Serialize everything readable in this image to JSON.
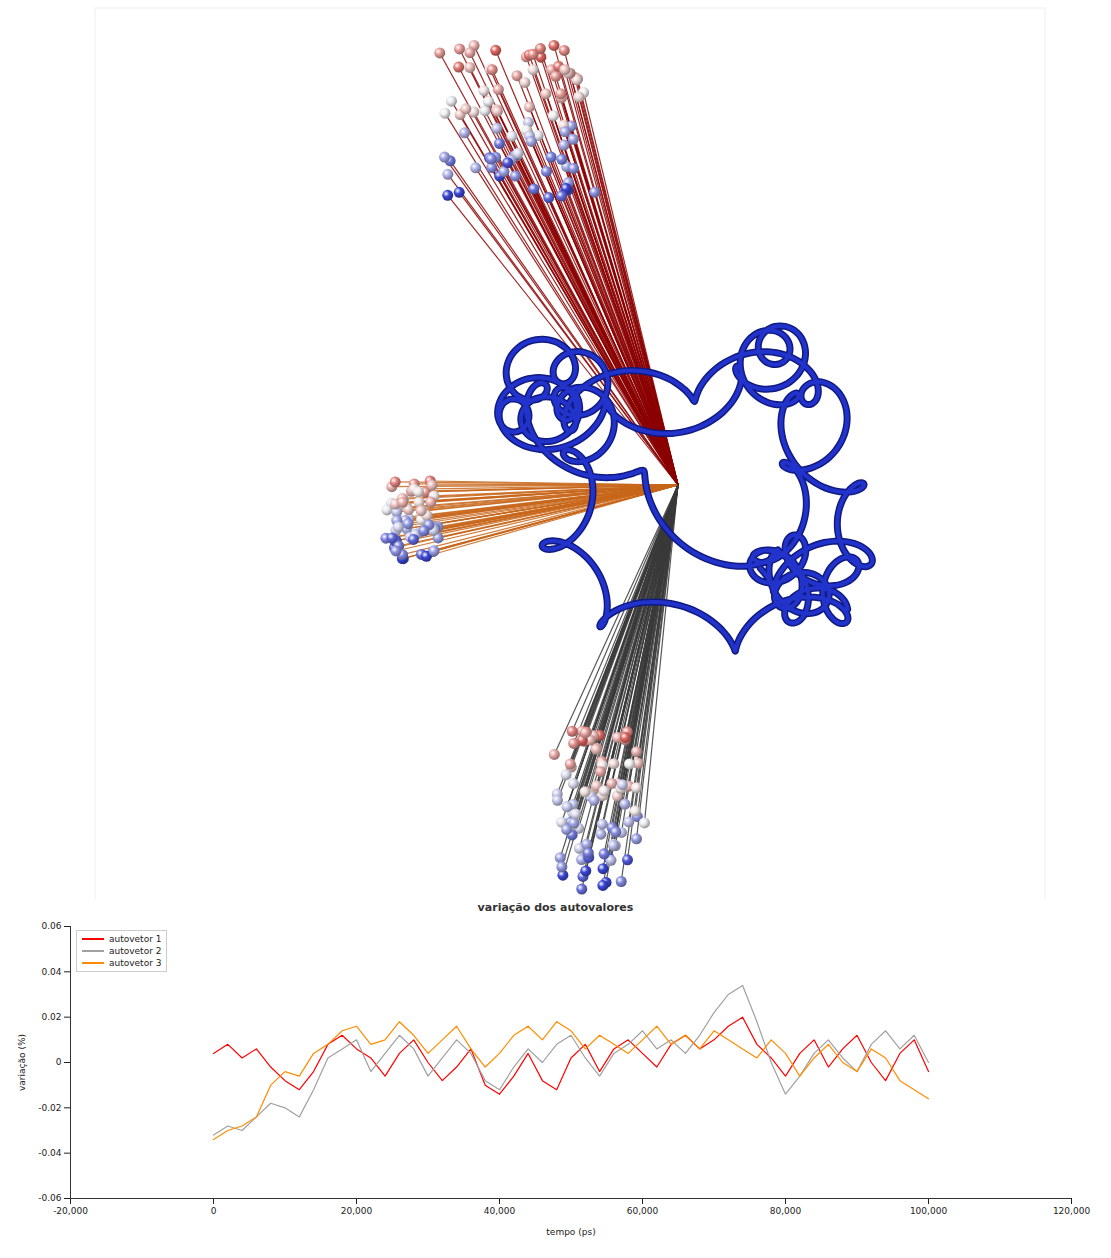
{
  "chart_data": {
    "type": "line",
    "title": "variação dos autovalores",
    "xlabel": "tempo (ps)",
    "ylabel": "variação (%)",
    "xlim": [
      -20000,
      120000
    ],
    "xticks": [
      {
        "value": -20000,
        "label": "-20,000"
      },
      0,
      {
        "value": 20000,
        "label": "20,000"
      },
      {
        "value": 40000,
        "label": "40,000"
      },
      {
        "value": 60000,
        "label": "60,000"
      },
      {
        "value": 80000,
        "label": "80,000"
      },
      {
        "value": 100000,
        "label": "100,000"
      },
      {
        "value": 120000,
        "label": "120,000"
      }
    ],
    "ylim": [
      -0.06,
      0.06
    ],
    "yticks": [
      -0.06,
      -0.04,
      -0.02,
      0,
      0.02,
      0.04,
      0.06
    ],
    "grid": false,
    "legend": "top-left",
    "x": [
      0,
      2000,
      4000,
      6000,
      8000,
      10000,
      12000,
      14000,
      16000,
      18000,
      20000,
      22000,
      24000,
      26000,
      28000,
      30000,
      32000,
      34000,
      36000,
      38000,
      40000,
      42000,
      44000,
      46000,
      48000,
      50000,
      52000,
      54000,
      56000,
      58000,
      60000,
      62000,
      64000,
      66000,
      68000,
      70000,
      72000,
      74000,
      76000,
      78000,
      80000,
      82000,
      84000,
      86000,
      88000,
      90000,
      92000,
      94000,
      96000,
      98000,
      100000
    ],
    "series": [
      {
        "name": "autovetor 1",
        "color": "#ff0000",
        "values": [
          0.004,
          0.008,
          0.002,
          0.006,
          -0.002,
          -0.008,
          -0.012,
          -0.004,
          0.008,
          0.012,
          0.006,
          0.002,
          -0.006,
          0.004,
          0.01,
          0.0,
          -0.008,
          -0.002,
          0.006,
          -0.01,
          -0.014,
          -0.006,
          0.004,
          -0.008,
          -0.012,
          0.002,
          0.008,
          -0.004,
          0.006,
          0.01,
          0.004,
          -0.002,
          0.008,
          0.012,
          0.006,
          0.01,
          0.016,
          0.02,
          0.008,
          0.002,
          -0.006,
          0.004,
          0.01,
          -0.002,
          0.006,
          0.012,
          0.0,
          -0.008,
          0.004,
          0.01,
          -0.004
        ]
      },
      {
        "name": "autovetor 2",
        "color": "#a0a0a0",
        "values": [
          -0.032,
          -0.028,
          -0.03,
          -0.024,
          -0.018,
          -0.02,
          -0.024,
          -0.012,
          0.002,
          0.006,
          0.01,
          -0.004,
          0.004,
          0.012,
          0.006,
          -0.006,
          0.002,
          0.01,
          0.004,
          -0.008,
          -0.012,
          -0.002,
          0.006,
          0.0,
          0.008,
          0.012,
          0.002,
          -0.006,
          0.004,
          0.008,
          0.014,
          0.006,
          0.01,
          0.004,
          0.012,
          0.022,
          0.03,
          0.034,
          0.018,
          0.0,
          -0.014,
          -0.006,
          0.004,
          0.01,
          0.002,
          -0.004,
          0.008,
          0.014,
          0.006,
          0.012,
          0.0
        ]
      },
      {
        "name": "autovetor 3",
        "color": "#ff8c00",
        "values": [
          -0.034,
          -0.03,
          -0.028,
          -0.024,
          -0.01,
          -0.004,
          -0.006,
          0.004,
          0.008,
          0.014,
          0.016,
          0.008,
          0.01,
          0.018,
          0.012,
          0.004,
          0.01,
          0.016,
          0.006,
          -0.002,
          0.004,
          0.012,
          0.016,
          0.01,
          0.018,
          0.014,
          0.006,
          0.012,
          0.008,
          0.004,
          0.01,
          0.016,
          0.008,
          0.012,
          0.006,
          0.014,
          0.01,
          0.006,
          0.002,
          0.01,
          0.004,
          -0.006,
          0.002,
          0.008,
          0.0,
          -0.004,
          0.006,
          0.002,
          -0.008,
          -0.012,
          -0.016
        ]
      }
    ]
  }
}
